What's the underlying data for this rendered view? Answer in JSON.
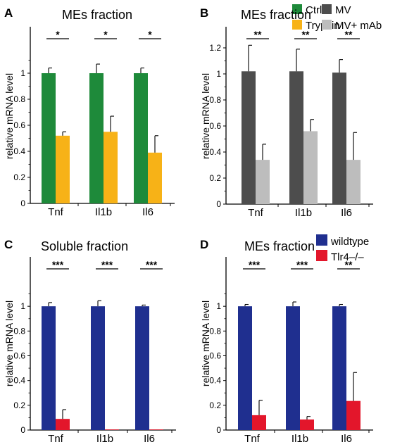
{
  "chart_data": [
    {
      "panel": "A",
      "type": "bar",
      "title": "MEs fraction",
      "ylabel": "relative mRNA level",
      "categories": [
        "Tnf",
        "Il1b",
        "Il6"
      ],
      "ylim": [
        0,
        1.2
      ],
      "yticks": [
        "0",
        "0.2",
        "0.4",
        "0.6",
        "0.8",
        "1"
      ],
      "series": [
        {
          "name": "Ctrl",
          "color": "#1e8a3a",
          "values": [
            1.0,
            1.0,
            1.0
          ],
          "errors": [
            0.04,
            0.07,
            0.04
          ]
        },
        {
          "name": "Trypsin",
          "color": "#f7b217",
          "values": [
            0.52,
            0.55,
            0.39
          ],
          "errors": [
            0.03,
            0.12,
            0.13
          ]
        }
      ],
      "significance": [
        "*",
        "*",
        "*"
      ],
      "legend_position": "top-right"
    },
    {
      "panel": "B",
      "type": "bar",
      "title": "MEs fraction",
      "ylabel": "relative mRNA level",
      "categories": [
        "Tnf",
        "Il1b",
        "Il6"
      ],
      "ylim": [
        0,
        1.2
      ],
      "yticks": [
        "0",
        "0.2",
        "0.4",
        "0.6",
        "0.8",
        "1",
        "1.2"
      ],
      "series": [
        {
          "name": "MV",
          "color": "#4d4d4d",
          "values": [
            1.02,
            1.02,
            1.01
          ],
          "errors": [
            0.2,
            0.17,
            0.1
          ]
        },
        {
          "name": "MV+ mAb",
          "color": "#bdbdbd",
          "values": [
            0.34,
            0.56,
            0.34
          ],
          "errors": [
            0.12,
            0.09,
            0.21
          ]
        }
      ],
      "significance": [
        "**",
        "**",
        "**"
      ],
      "legend_position": "top-right"
    },
    {
      "panel": "C",
      "type": "bar",
      "title": "Soluble fraction",
      "ylabel": "relative mRNA level",
      "categories": [
        "Tnf",
        "Il1b",
        "Il6"
      ],
      "ylim": [
        0,
        1.2
      ],
      "yticks": [
        "0",
        "0.2",
        "0.4",
        "0.6",
        "0.8",
        "1"
      ],
      "series": [
        {
          "name": "wildtype",
          "color": "#1f2f8f",
          "values": [
            1.0,
            1.0,
            1.0
          ],
          "errors": [
            0.03,
            0.045,
            0.01
          ]
        },
        {
          "name": "Tlr4–/–",
          "color": "#e3162b",
          "values": [
            0.09,
            0.003,
            0.003
          ],
          "errors": [
            0.075,
            0.0,
            0.0
          ]
        }
      ],
      "significance": [
        "***",
        "***",
        "***"
      ],
      "legend_position": "none"
    },
    {
      "panel": "D",
      "type": "bar",
      "title": "MEs fraction",
      "ylabel": "relative mRNA level",
      "categories": [
        "Tnf",
        "Il1b",
        "Il6"
      ],
      "ylim": [
        0,
        1.2
      ],
      "yticks": [
        "0",
        "0.2",
        "0.4",
        "0.6",
        "0.8",
        "1"
      ],
      "series": [
        {
          "name": "wildtype",
          "color": "#1f2f8f",
          "values": [
            1.0,
            1.0,
            1.0
          ],
          "errors": [
            0.015,
            0.035,
            0.015
          ]
        },
        {
          "name": "Tlr4–/–",
          "color": "#e3162b",
          "values": [
            0.12,
            0.085,
            0.235
          ],
          "errors": [
            0.12,
            0.025,
            0.23
          ]
        }
      ],
      "significance": [
        "***",
        "***",
        "**"
      ],
      "legend_position": "top-right"
    }
  ]
}
